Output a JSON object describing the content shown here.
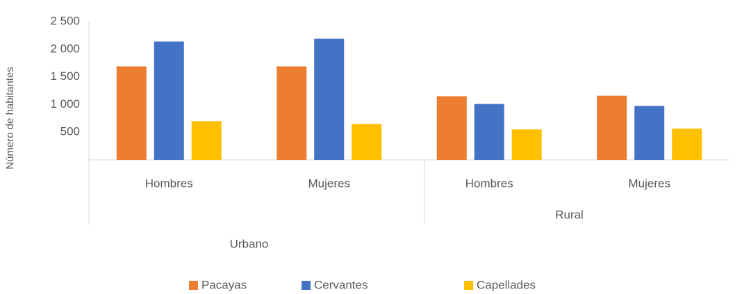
{
  "chart_data": {
    "type": "bar",
    "y_axis_label": "Número de habitantes",
    "categories": [
      "Hombres",
      "Mujeres",
      "Hombres",
      "Mujeres"
    ],
    "groups": [
      "Urbano",
      "Rural"
    ],
    "series": [
      {
        "name": "Pacayas",
        "color": "#ED7D31",
        "values": [
          1690,
          1690,
          1150,
          1160
        ]
      },
      {
        "name": "Cervantes",
        "color": "#4472C4",
        "values": [
          2140,
          2190,
          1010,
          975
        ]
      },
      {
        "name": "Capellades",
        "color": "#FFC000",
        "values": [
          700,
          650,
          550,
          565
        ]
      }
    ],
    "ylim": [
      0,
      2500
    ],
    "yticks": [
      500,
      {
        "value": 1000,
        "label": "1 000"
      },
      {
        "value": 1500,
        "label": "1 500"
      },
      {
        "value": 2000,
        "label": "2 000"
      },
      {
        "value": 2500,
        "label": "2 500"
      }
    ],
    "grid": false,
    "legend": "bottom"
  }
}
